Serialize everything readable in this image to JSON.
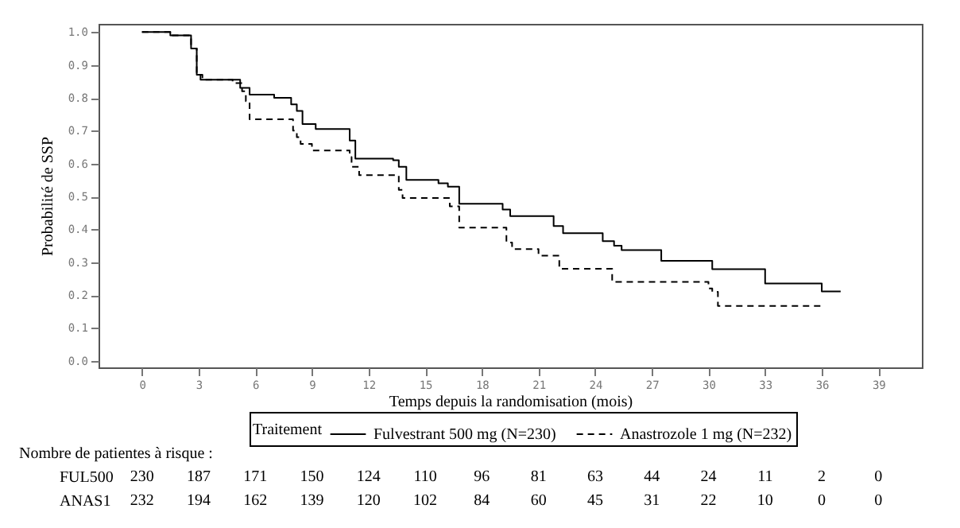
{
  "chart_data": {
    "type": "step",
    "xlabel": "Temps depuis la randomisation (mois)",
    "ylabel": "Probabilité de SSP",
    "legend_title": "Traitement",
    "legend": "bottom",
    "grid": false,
    "xlim": [
      -2.3,
      41.3
    ],
    "ylim": [
      -0.02,
      1.025
    ],
    "xticks": [
      0,
      3,
      6,
      9,
      12,
      15,
      18,
      21,
      24,
      27,
      30,
      33,
      36,
      39
    ],
    "yticks": [
      {
        "value": 0,
        "label": "0.0"
      },
      0.1,
      0.2,
      0.3,
      0.4,
      0.5,
      0.6,
      0.7,
      0.8,
      0.9,
      {
        "value": 1,
        "label": "1.0"
      }
    ],
    "series": [
      {
        "name": "Fulvestrant 500 mg (N=230)",
        "color": "#000000",
        "line_style": "solid",
        "x": [
          0,
          1.5,
          2.6,
          2.9,
          3.1,
          5.2,
          5.7,
          7.0,
          7.9,
          8.2,
          8.5,
          9.2,
          11.0,
          11.3,
          13.3,
          13.6,
          14.0,
          15.7,
          16.2,
          16.8,
          19.1,
          19.5,
          21.8,
          22.3,
          24.4,
          25.0,
          25.4,
          27.5,
          30.2,
          33.0,
          36.0,
          37.0
        ],
        "values": [
          1.0,
          0.99,
          0.95,
          0.87,
          0.855,
          0.83,
          0.81,
          0.8,
          0.78,
          0.76,
          0.72,
          0.705,
          0.67,
          0.615,
          0.61,
          0.59,
          0.55,
          0.54,
          0.53,
          0.478,
          0.46,
          0.44,
          0.41,
          0.388,
          0.364,
          0.35,
          0.337,
          0.304,
          0.279,
          0.235,
          0.211,
          0.211
        ]
      },
      {
        "name": "Anastrozole 1 mg (N=232)",
        "color": "#000000",
        "line_style": "dashed",
        "x": [
          0,
          1.5,
          2.6,
          2.9,
          3.2,
          4.8,
          5.3,
          5.5,
          5.7,
          8.0,
          8.2,
          8.4,
          9.0,
          11.0,
          11.1,
          11.5,
          13.6,
          13.8,
          16.3,
          16.8,
          19.3,
          19.6,
          21.0,
          22.1,
          24.9,
          30.0,
          30.2,
          30.5,
          36.0
        ],
        "values": [
          1.0,
          0.99,
          0.95,
          0.87,
          0.855,
          0.845,
          0.82,
          0.79,
          0.735,
          0.7,
          0.68,
          0.66,
          0.64,
          0.62,
          0.59,
          0.565,
          0.52,
          0.495,
          0.47,
          0.405,
          0.36,
          0.34,
          0.32,
          0.28,
          0.24,
          0.22,
          0.21,
          0.167,
          0.167
        ]
      }
    ],
    "annotations": [
      "Nombre de patientes à risque :",
      "FUL500 230 187 171 150 124 110 96 81 63 44 24 11 2 0",
      "ANAS1 232 194 162 139 120 102 84 60 45 31 22 10 0 0"
    ]
  }
}
